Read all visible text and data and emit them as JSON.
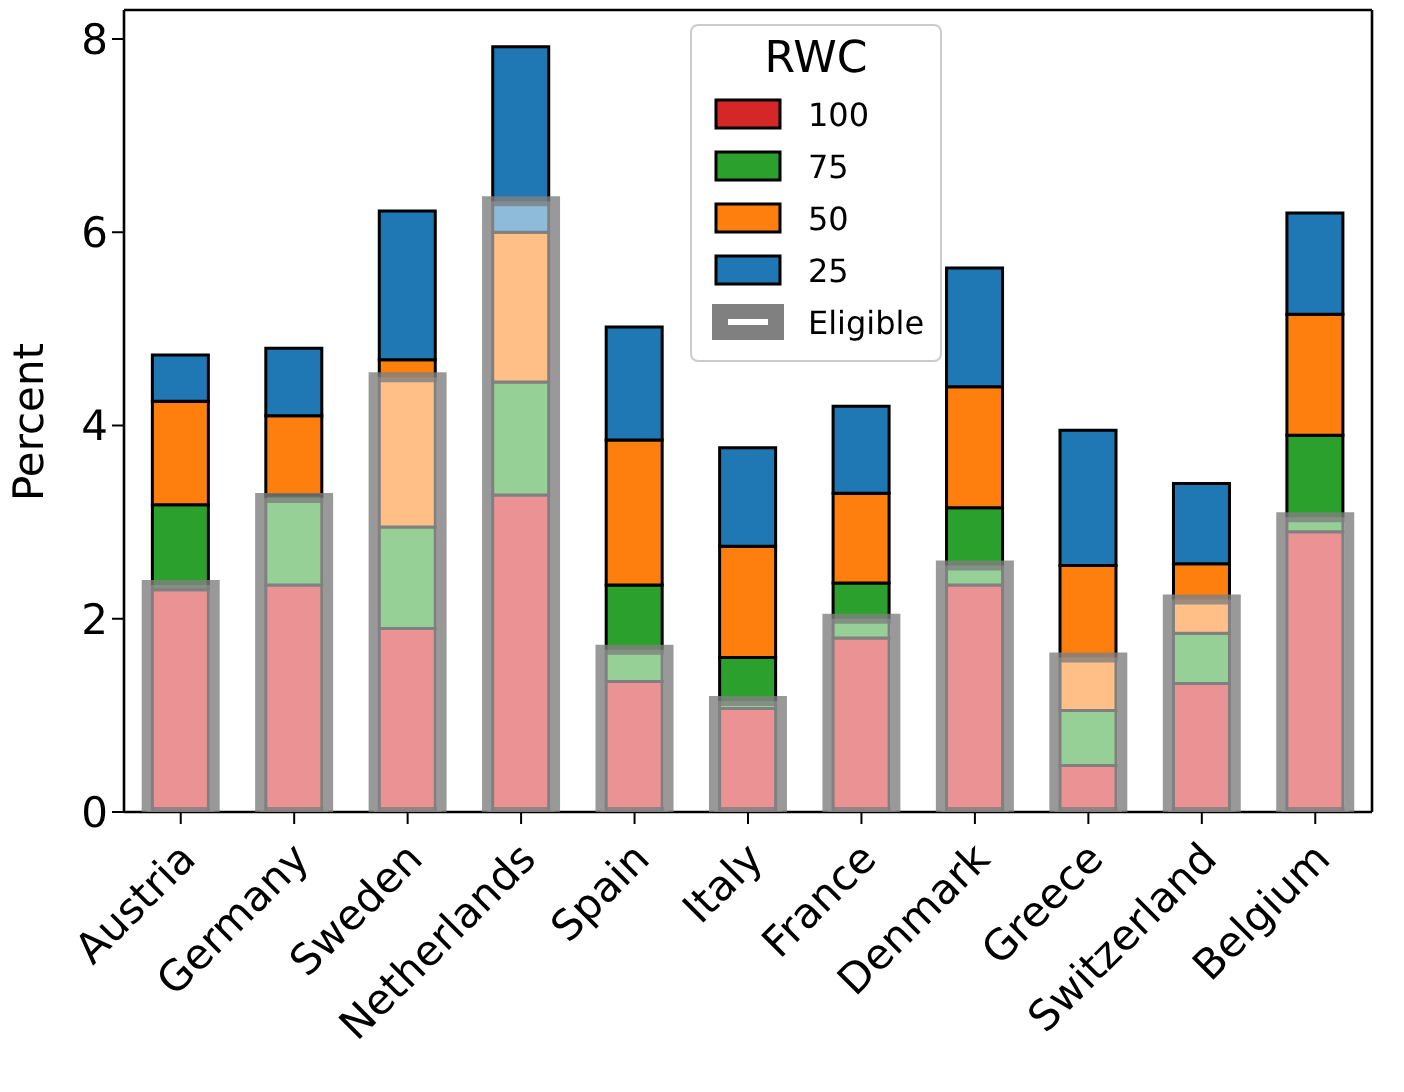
{
  "chart_data": [
    {
      "type": "bar",
      "stacked": true,
      "ylabel": "Percent",
      "legend_title": "RWC",
      "legend": "top",
      "grid": false,
      "categories": [
        "Austria",
        "Germany",
        "Sweden",
        "Netherlands",
        "Spain",
        "Italy",
        "France",
        "Denmark",
        "Greece",
        "Switzerland",
        "Belgium"
      ],
      "ylim": [
        0,
        8.3
      ],
      "yticks": [
        0,
        2,
        4,
        6,
        8
      ],
      "series": [
        {
          "name": "100",
          "color": "#d62728",
          "values": [
            2.3,
            2.35,
            1.9,
            3.28,
            1.35,
            1.07,
            1.8,
            2.35,
            0.48,
            1.33,
            2.9
          ]
        },
        {
          "name": "75",
          "color": "#2ca02c",
          "values": [
            0.88,
            0.93,
            1.05,
            1.17,
            1.0,
            0.53,
            0.57,
            0.8,
            0.57,
            0.52,
            1.0
          ]
        },
        {
          "name": "50",
          "color": "#ff7f0e",
          "values": [
            1.07,
            0.82,
            1.73,
            1.55,
            1.5,
            1.15,
            0.93,
            1.25,
            1.5,
            0.72,
            1.25
          ]
        },
        {
          "name": "25",
          "color": "#1f77b4",
          "values": [
            0.48,
            0.7,
            1.54,
            1.92,
            1.17,
            1.02,
            0.9,
            1.23,
            1.4,
            0.83,
            1.05
          ]
        }
      ]
    },
    {
      "type": "bar",
      "legend": "top",
      "tick_labels": false,
      "categories": [
        null,
        null,
        null,
        null,
        null,
        null,
        null,
        null,
        null,
        null,
        null
      ],
      "ylim": [
        0,
        8.3
      ],
      "series": [
        {
          "name": "Eligible",
          "color": "#808080",
          "values": [
            2.35,
            3.25,
            4.5,
            6.32,
            1.68,
            1.15,
            2.0,
            2.55,
            1.6,
            2.2,
            3.05
          ]
        }
      ]
    }
  ]
}
